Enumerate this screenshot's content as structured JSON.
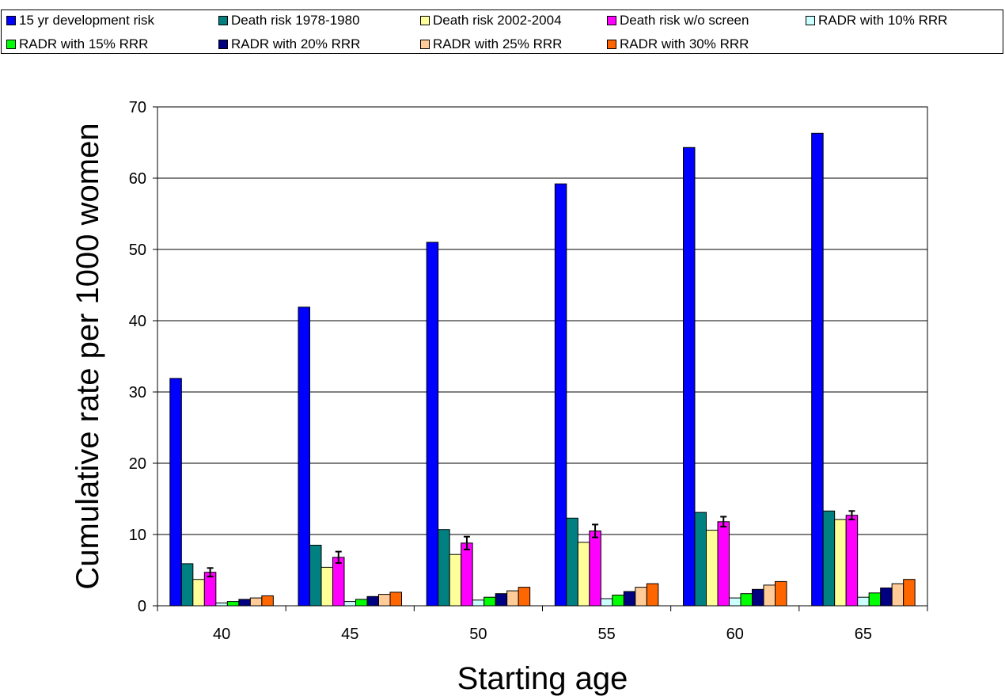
{
  "chart_data": {
    "type": "bar",
    "title": "",
    "xlabel": "Starting age",
    "ylabel": "Cumulative rate per 1000 women",
    "categories": [
      "40",
      "45",
      "50",
      "55",
      "60",
      "65"
    ],
    "ylim": [
      0,
      70
    ],
    "yticks": [
      0,
      10,
      20,
      30,
      40,
      50,
      60,
      70
    ],
    "grid": "horizontal",
    "legend_position": "top",
    "series": [
      {
        "name": "15 yr development risk",
        "color": "#0000ff",
        "values": [
          31.9,
          41.9,
          51.0,
          59.2,
          64.3,
          66.3
        ]
      },
      {
        "name": "Death risk 1978-1980",
        "color": "#008080",
        "values": [
          5.9,
          8.5,
          10.7,
          12.3,
          13.1,
          13.3
        ]
      },
      {
        "name": "Death risk 2002-2004",
        "color": "#ffff99",
        "values": [
          3.7,
          5.4,
          7.2,
          8.9,
          10.6,
          12.1
        ]
      },
      {
        "name": "Death risk w/o screen",
        "color": "#ff00ff",
        "values": [
          4.7,
          6.8,
          8.8,
          10.5,
          11.8,
          12.7
        ],
        "error": [
          0.6,
          0.8,
          0.9,
          0.9,
          0.7,
          0.6
        ]
      },
      {
        "name": "RADR with 10% RRR",
        "color": "#ccffff",
        "values": [
          0.4,
          0.6,
          0.8,
          1.0,
          1.1,
          1.2
        ]
      },
      {
        "name": "RADR with 15% RRR",
        "color": "#00ff00",
        "values": [
          0.6,
          0.9,
          1.2,
          1.5,
          1.7,
          1.8
        ]
      },
      {
        "name": "RADR with 20% RRR",
        "color": "#000080",
        "values": [
          0.9,
          1.3,
          1.7,
          2.0,
          2.3,
          2.5
        ]
      },
      {
        "name": "RADR with 25% RRR",
        "color": "#ffcc99",
        "values": [
          1.1,
          1.6,
          2.1,
          2.6,
          2.9,
          3.1
        ]
      },
      {
        "name": "RADR with 30% RRR",
        "color": "#ff6600",
        "values": [
          1.4,
          1.9,
          2.6,
          3.1,
          3.4,
          3.7
        ]
      }
    ]
  }
}
